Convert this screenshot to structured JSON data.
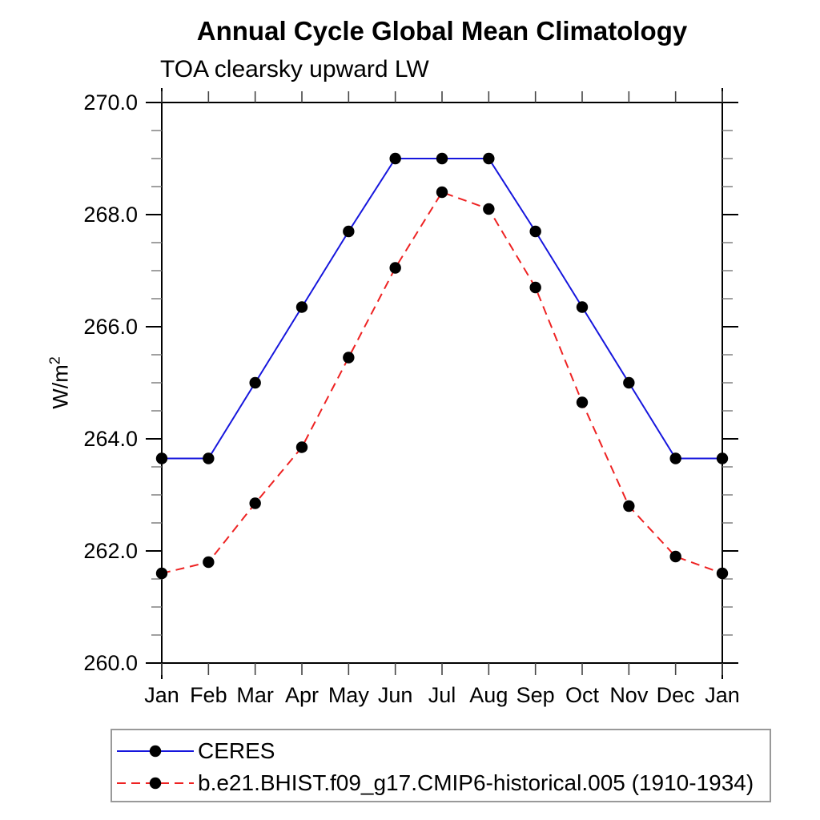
{
  "title": "Annual Cycle Global Mean Climatology",
  "subtitle": "TOA clearsky upward LW",
  "ylabel": {
    "base": "W/m",
    "exponent": "2"
  },
  "chart_data": {
    "type": "line",
    "x_categories": [
      "Jan",
      "Feb",
      "Mar",
      "Apr",
      "May",
      "Jun",
      "Jul",
      "Aug",
      "Sep",
      "Oct",
      "Nov",
      "Dec",
      "Jan"
    ],
    "ylim": [
      260.0,
      270.0
    ],
    "ytick_values": [
      260.0,
      262.0,
      264.0,
      266.0,
      268.0,
      270.0
    ],
    "ytick_labels": [
      "260.0",
      "262.0",
      "264.0",
      "266.0",
      "268.0",
      "270.0"
    ],
    "y_minor_step": 0.5,
    "grid": false,
    "legend_position": "bottom-left boxed",
    "series": [
      {
        "name": "CERES",
        "color": "#1616dd",
        "line_style": "solid",
        "marker": "filled-circle",
        "marker_color": "#000000",
        "values": [
          263.65,
          263.65,
          265.0,
          266.35,
          267.7,
          269.0,
          269.0,
          269.0,
          267.7,
          266.35,
          265.0,
          263.65,
          263.65
        ]
      },
      {
        "name": "b.e21.BHIST.f09_g17.CMIP6-historical.005 (1910-1934)",
        "color": "#ee2222",
        "line_style": "dashed",
        "marker": "filled-circle",
        "marker_color": "#000000",
        "values": [
          261.6,
          261.8,
          262.85,
          263.85,
          265.45,
          267.05,
          268.4,
          268.1,
          266.7,
          264.65,
          262.8,
          261.9,
          261.6
        ]
      }
    ]
  },
  "axis_colors": {
    "axis": "#000000",
    "major_tick": "#000000",
    "minor_tick": "#777777",
    "month_tick": "#444444"
  }
}
